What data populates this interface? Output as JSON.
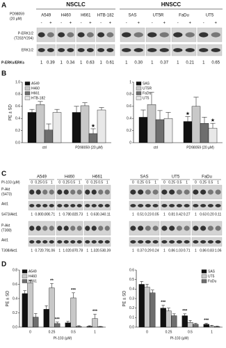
{
  "panel_a": {
    "label": "A",
    "treatment": [
      "PD98059",
      "(20 µM)"
    ],
    "signs": [
      "-",
      "+"
    ],
    "rows": [
      [
        "P-ERK1/2",
        "(T202/Y204)"
      ],
      [
        "ERK1/2"
      ]
    ],
    "ratio_label": "P-ERKs/ERKs",
    "groups": [
      {
        "name": "NSCLC",
        "lines": [
          {
            "name": "A549",
            "ratios": [
              "1",
              "0.39"
            ]
          },
          {
            "name": "H460",
            "ratios": [
              "1",
              "0.34"
            ]
          },
          {
            "name": "H661",
            "ratios": [
              "1",
              "0.63"
            ]
          },
          {
            "name": "HTB-182",
            "ratios": [
              "1",
              "0.61"
            ]
          }
        ]
      },
      {
        "name": "HNSCC",
        "lines": [
          {
            "name": "SAS",
            "ratios": [
              "1",
              "0.30"
            ]
          },
          {
            "name": "UT5R",
            "ratios": [
              "1",
              "0.37"
            ]
          },
          {
            "name": "FaDu",
            "ratios": [
              "1",
              "0.21"
            ]
          },
          {
            "name": "UT5",
            "ratios": [
              "1",
              "0.65"
            ]
          }
        ]
      }
    ]
  },
  "panel_b": {
    "label": "B"
  },
  "panel_c": {
    "label": "C",
    "dose_label": "PI-103 (µM)",
    "doses": [
      "0",
      "0.25",
      "0.5",
      "1"
    ],
    "blocks": [
      {
        "rows": [
          [
            "P-Akt",
            "(S473)"
          ],
          [
            "Akt1"
          ]
        ],
        "ratio_label": "S473/Akt1"
      },
      {
        "rows": [
          [
            "P-Akt",
            "(T308)"
          ],
          [
            "Akt1"
          ]
        ],
        "ratio_label": "T308/Akt1"
      }
    ],
    "groups": [
      {
        "lines": [
          {
            "name": "A549",
            "ratios": [
              [
                "1",
                "0.80",
                "0.80",
                "0.71"
              ],
              [
                "1",
                "0.72",
                "0.79",
                "1.06"
              ]
            ]
          },
          {
            "name": "H460",
            "ratios": [
              [
                "1",
                "0.78",
                "0.82",
                "0.73"
              ],
              [
                "1",
                "1.02",
                "0.87",
                "0.78"
              ]
            ]
          },
          {
            "name": "H661",
            "ratios": [
              [
                "1",
                "0.63",
                "0.34",
                "0.11"
              ],
              [
                "1",
                "1.32",
                "0.53",
                "0.39"
              ]
            ]
          }
        ]
      },
      {
        "lines": [
          {
            "name": "SAS",
            "ratios": [
              [
                "1",
                "0.51",
                "0.23",
                "0.05"
              ],
              [
                "1",
                "0.37",
                "0.29",
                "0.24"
              ]
            ]
          },
          {
            "name": "UT5",
            "ratios": [
              [
                "1",
                "0.81",
                "0.42",
                "0.27"
              ],
              [
                "1",
                "0.86",
                "1.03",
                "0.71"
              ]
            ]
          },
          {
            "name": "FaDu",
            "ratios": [
              [
                "1",
                "0.63",
                "0.20",
                "0.11"
              ],
              [
                "1",
                "0.86",
                "0.83",
                "1.06"
              ]
            ]
          }
        ]
      }
    ]
  },
  "panel_d": {
    "label": "D"
  },
  "chart_data": [
    {
      "type": "bar",
      "ylabel": "PE ± SD",
      "categories": [
        "ctrl",
        "PD98059 (20 µM)"
      ],
      "legend": "upper left",
      "ylim": [
        0,
        1
      ],
      "yticks": [
        {
          "value": 0,
          "label": "0.0"
        },
        {
          "value": 0.2,
          "label": "0.2"
        },
        {
          "value": 0.4,
          "label": "0.4"
        },
        {
          "value": 0.6,
          "label": "0.6"
        },
        {
          "value": 0.8,
          "label": "0.8"
        },
        {
          "value": 1,
          "label": "1.0"
        }
      ],
      "series": [
        {
          "name": "A549",
          "color": "#111111",
          "values": [
            0.5,
            0.5
          ],
          "errors": [
            0.05,
            0.1
          ]
        },
        {
          "name": "H460",
          "color": "#c8c8c8",
          "values": [
            0.63,
            0.61
          ],
          "errors": [
            0.05,
            0.05
          ]
        },
        {
          "name": "H661",
          "color": "#6e6e6e",
          "values": [
            0.21,
            0.15
          ],
          "errors": [
            0.1,
            0.08
          ],
          "markers": [
            null,
            "★"
          ]
        },
        {
          "name": "HTB-182",
          "color": "#e8e8e8",
          "values": [
            0.5,
            0.54
          ],
          "errors": [
            0.05,
            0.04
          ]
        }
      ]
    },
    {
      "type": "bar",
      "categories": [
        "ctrl",
        "PD98059 (20 µM)"
      ],
      "legend": "upper left",
      "ylim": [
        0,
        1
      ],
      "yticks": [
        0,
        0.2,
        0.4,
        0.6,
        0.8,
        1
      ],
      "series": [
        {
          "name": "SAS",
          "color": "#111111",
          "values": [
            0.42,
            0.35
          ],
          "errors": [
            0.12,
            0.08
          ],
          "markers": [
            null,
            "★"
          ]
        },
        {
          "name": "UT5R",
          "color": "#c8c8c8",
          "values": [
            0.63,
            0.6
          ],
          "errors": [
            0.2,
            0.15
          ]
        },
        {
          "name": "FaDu",
          "color": "#6e6e6e",
          "values": [
            0.38,
            0.32
          ],
          "errors": [
            0.15,
            0.1
          ]
        },
        {
          "name": "UT5",
          "color": "#e8e8e8",
          "values": [
            0.4,
            0.24
          ],
          "errors": [
            0.1,
            0.08
          ],
          "markers": [
            null,
            "★"
          ]
        }
      ]
    },
    {
      "type": "bar",
      "ylabel": "PE ± SD",
      "xlabel": "PI-103 (µM)",
      "categories": [
        "0",
        "0.25",
        "0.5",
        "1"
      ],
      "legend": "upper left",
      "ylim": [
        0,
        0.8
      ],
      "yticks": [
        {
          "value": 0,
          "label": "0.0"
        },
        {
          "value": 0.2,
          "label": "0.2"
        },
        {
          "value": 0.4,
          "label": "0.4"
        },
        {
          "value": 0.6,
          "label": "0.6"
        },
        {
          "value": 0.8,
          "label": "0.8"
        }
      ],
      "series": [
        {
          "name": "A549",
          "color": "#111111",
          "values": [
            0.47,
            0.25,
            0.06,
            0.01
          ],
          "errors": [
            0.04,
            0.05,
            0.02,
            0.01
          ]
        },
        {
          "name": "H460",
          "color": "#c8c8c8",
          "values": [
            0.62,
            0.55,
            0.41,
            0.12
          ],
          "errors": [
            0.04,
            0.06,
            0.07,
            0.06
          ],
          "markers": [
            null,
            "**",
            "***",
            "***"
          ]
        },
        {
          "name": "H661",
          "color": "#6e6e6e",
          "values": [
            0.14,
            0.05,
            0.01,
            0.005
          ],
          "errors": [
            0.05,
            0.02,
            0.01,
            0.005
          ],
          "markers": [
            null,
            "***",
            null,
            null
          ]
        }
      ]
    },
    {
      "type": "bar",
      "ylabel": "PE ± SD",
      "xlabel": "PI-103 (µM)",
      "categories": [
        "0",
        "0.25",
        "0.5",
        "1"
      ],
      "legend": "upper right",
      "ylim": [
        0,
        0.6
      ],
      "yticks": [
        {
          "value": 0,
          "label": "0.0"
        },
        {
          "value": 0.1,
          "label": "0.1"
        },
        {
          "value": 0.2,
          "label": "0.2"
        },
        {
          "value": 0.3,
          "label": "0.3"
        },
        {
          "value": 0.4,
          "label": "0.4"
        },
        {
          "value": 0.5,
          "label": "0.5"
        },
        {
          "value": 0.6,
          "label": "0.6"
        }
      ],
      "series": [
        {
          "name": "SAS",
          "color": "#111111",
          "values": [
            0.45,
            0.2,
            0.12,
            0.03
          ],
          "errors": [
            0.03,
            0.03,
            0.02,
            0.01
          ],
          "markers": [
            null,
            "***",
            "***",
            "***"
          ]
        },
        {
          "name": "UT5",
          "color": "#c8c8c8",
          "values": [
            0.42,
            0.17,
            0.05,
            0.01
          ],
          "errors": [
            0.03,
            0.03,
            0.02,
            0.01
          ]
        },
        {
          "name": "FaDu",
          "color": "#6e6e6e",
          "values": [
            0.36,
            0.12,
            0.03,
            0.005
          ],
          "errors": [
            0.03,
            0.02,
            0.01,
            0.005
          ]
        }
      ]
    }
  ]
}
